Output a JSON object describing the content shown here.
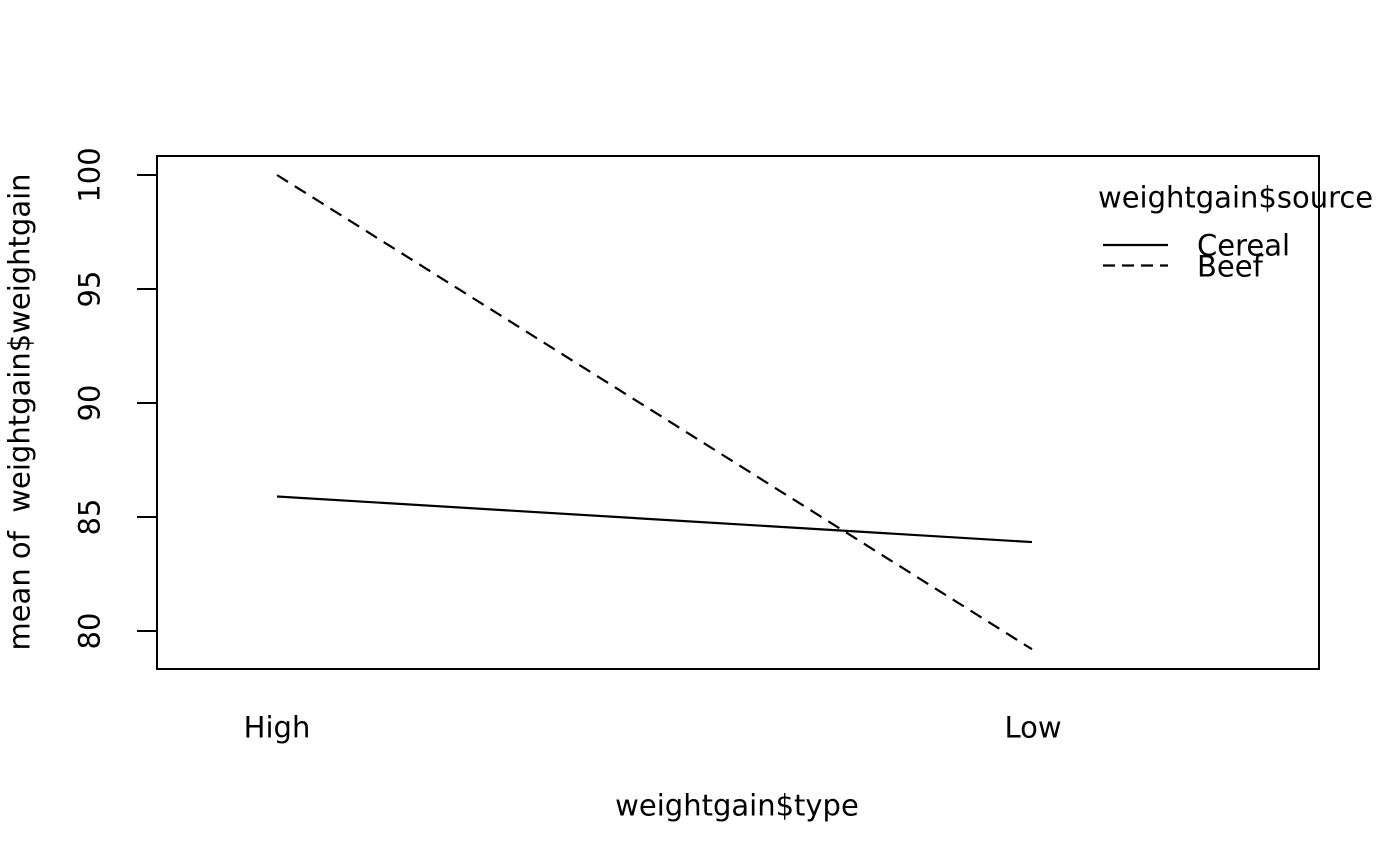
{
  "chart_data": {
    "type": "line",
    "title": "",
    "xlabel": "weightgain$type",
    "ylabel": "mean of  weightgain$weightgain",
    "categories": [
      "High",
      "Low"
    ],
    "series": [
      {
        "name": "Cereal",
        "values": [
          85.9,
          83.9
        ],
        "line_style": "solid",
        "color": "#000000"
      },
      {
        "name": "Beef",
        "values": [
          100.0,
          79.2
        ],
        "line_style": "dashed",
        "color": "#000000"
      }
    ],
    "ylim": [
      78.3,
      100.8
    ],
    "yticks": [
      80,
      85,
      90,
      95,
      100
    ],
    "ytick_labels": [
      "80",
      "85",
      "90",
      "95",
      "100"
    ],
    "legend": {
      "title": "weightgain$source",
      "position": "top-right",
      "items": [
        "Cereal",
        "Beef"
      ]
    },
    "grid": false,
    "background": "#ffffff",
    "foreground": "#000000"
  }
}
